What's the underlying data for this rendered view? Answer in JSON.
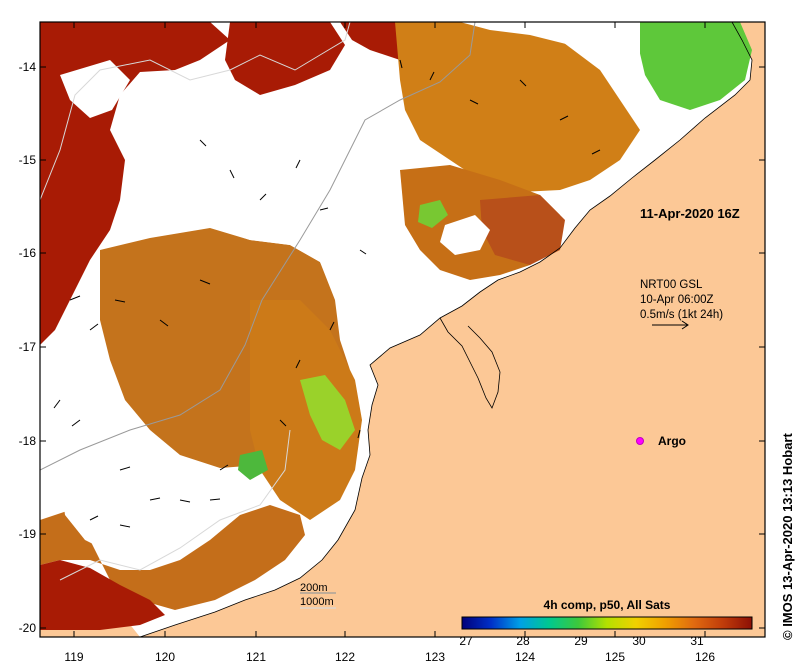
{
  "map": {
    "region": "Kimberley coast, NW Australia",
    "colors": {
      "land": "#fcc896",
      "no_data": "#ffffff",
      "sst_warm": "#a81b05",
      "sst_mid": "#d27d1b",
      "sst_cool": "#5ec83a",
      "frame": "#000000"
    },
    "y_ticks": [
      "-14",
      "-15",
      "-16",
      "-17",
      "-18",
      "-19",
      "-20"
    ],
    "x_ticks": [
      "119",
      "120",
      "121",
      "122",
      "123",
      "124",
      "125",
      "126"
    ]
  },
  "annotations": {
    "timestamp": "11-Apr-2020 16Z",
    "model_line1": "NRT00 GSL",
    "model_line2": "10-Apr 06:00Z",
    "model_line3": "0.5m/s (1kt 24h)",
    "argo_label": "Argo",
    "depth_200": "200m",
    "depth_1000": "1000m",
    "credit": "© IMOS 13-Apr-2020 13:13 Hobart"
  },
  "legend": {
    "title": "4h comp, p50, All Sats",
    "ticks": [
      "27",
      "28",
      "29",
      "30",
      "31"
    ]
  }
}
